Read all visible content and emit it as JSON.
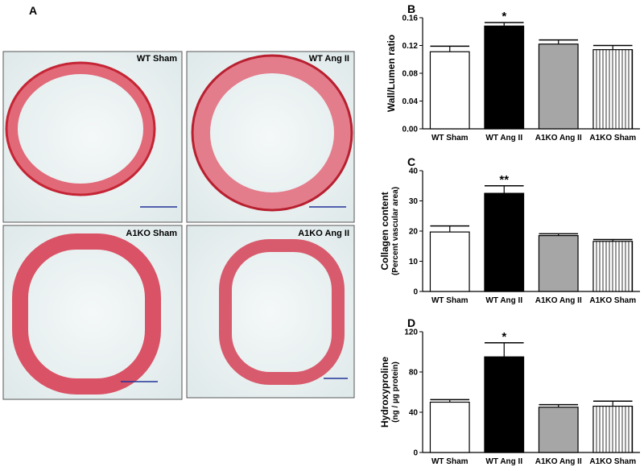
{
  "panels": {
    "label": "A",
    "images": [
      {
        "label": "WT Sham"
      },
      {
        "label": "WT Ang II"
      },
      {
        "label": "A1KO Sham"
      },
      {
        "label": "A1KO Ang II"
      }
    ]
  },
  "chart_data": [
    {
      "type": "bar",
      "panel": "B",
      "ylabel": "Wall/Lumen ratio",
      "categories": [
        "WT Sham",
        "WT Ang II",
        "A1KO Ang II",
        "A1KO Sham"
      ],
      "values": [
        0.111,
        0.148,
        0.122,
        0.114
      ],
      "errors": [
        0.008,
        0.005,
        0.006,
        0.006
      ],
      "colors": [
        "#ffffff",
        "#000000",
        "#a6a6a6",
        "#ffffff"
      ],
      "fills": [
        "solid",
        "solid",
        "solid",
        "vertical-lines"
      ],
      "ylim": [
        0,
        0.16
      ],
      "yticks": [
        {
          "value": 0,
          "label": "0.00"
        },
        0.04,
        0.08,
        0.12,
        0.16
      ],
      "annotation": {
        "text": "*",
        "category": "WT Ang II"
      }
    },
    {
      "type": "bar",
      "panel": "C",
      "ylabel": "Collagen content",
      "ylabel_sub": "(Percent vascular area)",
      "categories": [
        "WT Sham",
        "WT Ang II",
        "A1KO Ang II",
        "A1KO Sham"
      ],
      "values": [
        19.7,
        32.5,
        18.5,
        16.6
      ],
      "errors": [
        2,
        2.5,
        0.6,
        0.6
      ],
      "colors": [
        "#ffffff",
        "#000000",
        "#a6a6a6",
        "#ffffff"
      ],
      "fills": [
        "solid",
        "solid",
        "solid",
        "vertical-lines"
      ],
      "ylim": [
        0,
        40
      ],
      "yticks": [
        0,
        10,
        20,
        30,
        40
      ],
      "annotation": {
        "text": "**",
        "category": "WT Ang II"
      }
    },
    {
      "type": "bar",
      "panel": "D",
      "ylabel": "Hydroxyproline",
      "ylabel_sub": "(ng / µg protein)",
      "categories": [
        "WT Sham",
        "WT Ang II",
        "A1KO Ang II",
        "A1KO Sham"
      ],
      "values": [
        50,
        95,
        45,
        46
      ],
      "errors": [
        2.5,
        14,
        2.5,
        5
      ],
      "colors": [
        "#ffffff",
        "#000000",
        "#a6a6a6",
        "#ffffff"
      ],
      "fills": [
        "solid",
        "solid",
        "solid",
        "vertical-lines"
      ],
      "ylim": [
        0,
        120
      ],
      "yticks": [
        0,
        40,
        80,
        120
      ],
      "annotation": {
        "text": "*",
        "category": "WT Ang II"
      }
    }
  ]
}
